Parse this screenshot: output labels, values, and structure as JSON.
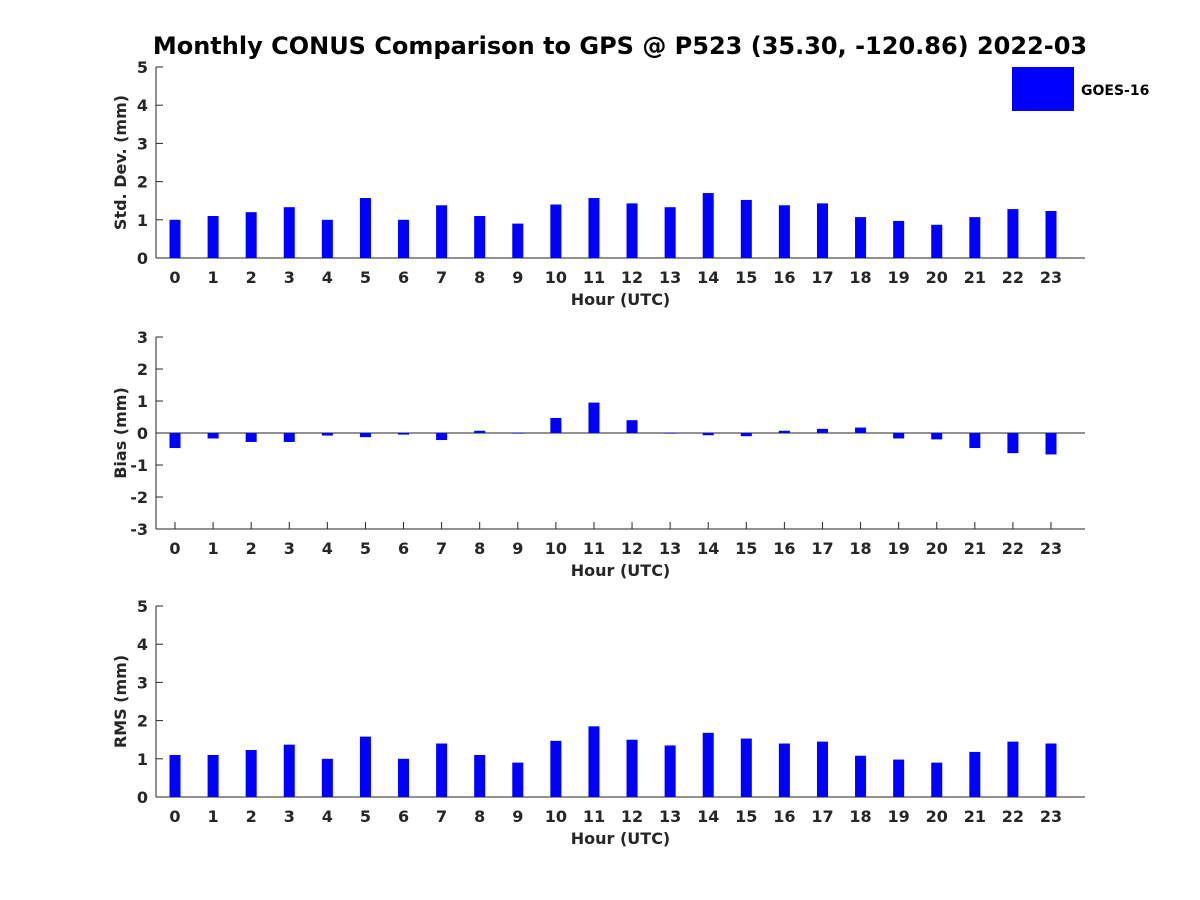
{
  "chart_data": {
    "title": "Monthly CONUS Comparison to GPS @ P523 (35.30, -120.86) 2022-03",
    "legend": {
      "label": "GOES-16",
      "placement": "top-right",
      "color": "#0000ff"
    },
    "bar_color": "#0000ff",
    "panels": [
      {
        "type": "bar",
        "xlabel": "Hour (UTC)",
        "ylabel": "Std. Dev. (mm)",
        "ylim": [
          0,
          5
        ],
        "yticks": [
          "0",
          "1",
          "2",
          "3",
          "4",
          "5"
        ],
        "categories": [
          "0",
          "1",
          "2",
          "3",
          "4",
          "5",
          "6",
          "7",
          "8",
          "9",
          "10",
          "11",
          "12",
          "13",
          "14",
          "15",
          "16",
          "17",
          "18",
          "19",
          "20",
          "21",
          "22",
          "23"
        ],
        "series": [
          {
            "name": "GOES-16",
            "values": [
              1.0,
              1.1,
              1.2,
              1.33,
              1.0,
              1.57,
              1.0,
              1.38,
              1.1,
              0.9,
              1.4,
              1.57,
              1.43,
              1.33,
              1.7,
              1.52,
              1.38,
              1.43,
              1.07,
              0.97,
              0.87,
              1.07,
              1.28,
              1.23
            ]
          }
        ]
      },
      {
        "type": "bar",
        "xlabel": "Hour (UTC)",
        "ylabel": "Bias (mm)",
        "ylim": [
          -3,
          3
        ],
        "yticks": [
          "-3",
          "-2",
          "-1",
          "0",
          "1",
          "2",
          "3"
        ],
        "categories": [
          "0",
          "1",
          "2",
          "3",
          "4",
          "5",
          "6",
          "7",
          "8",
          "9",
          "10",
          "11",
          "12",
          "13",
          "14",
          "15",
          "16",
          "17",
          "18",
          "19",
          "20",
          "21",
          "22",
          "23"
        ],
        "series": [
          {
            "name": "GOES-16",
            "values": [
              -0.47,
              -0.17,
              -0.28,
              -0.28,
              -0.08,
              -0.13,
              -0.05,
              -0.22,
              0.07,
              -0.02,
              0.47,
              0.95,
              0.4,
              -0.02,
              -0.07,
              -0.1,
              0.07,
              0.13,
              0.17,
              -0.17,
              -0.2,
              -0.47,
              -0.63,
              -0.67
            ]
          }
        ]
      },
      {
        "type": "bar",
        "xlabel": "Hour (UTC)",
        "ylabel": "RMS (mm)",
        "ylim": [
          0,
          5
        ],
        "yticks": [
          "0",
          "1",
          "2",
          "3",
          "4",
          "5"
        ],
        "categories": [
          "0",
          "1",
          "2",
          "3",
          "4",
          "5",
          "6",
          "7",
          "8",
          "9",
          "10",
          "11",
          "12",
          "13",
          "14",
          "15",
          "16",
          "17",
          "18",
          "19",
          "20",
          "21",
          "22",
          "23"
        ],
        "series": [
          {
            "name": "GOES-16",
            "values": [
              1.1,
              1.1,
              1.23,
              1.37,
              1.0,
              1.58,
              1.0,
              1.4,
              1.1,
              0.9,
              1.47,
              1.85,
              1.5,
              1.35,
              1.68,
              1.53,
              1.4,
              1.45,
              1.08,
              0.98,
              0.9,
              1.18,
              1.45,
              1.4
            ]
          }
        ]
      }
    ]
  }
}
